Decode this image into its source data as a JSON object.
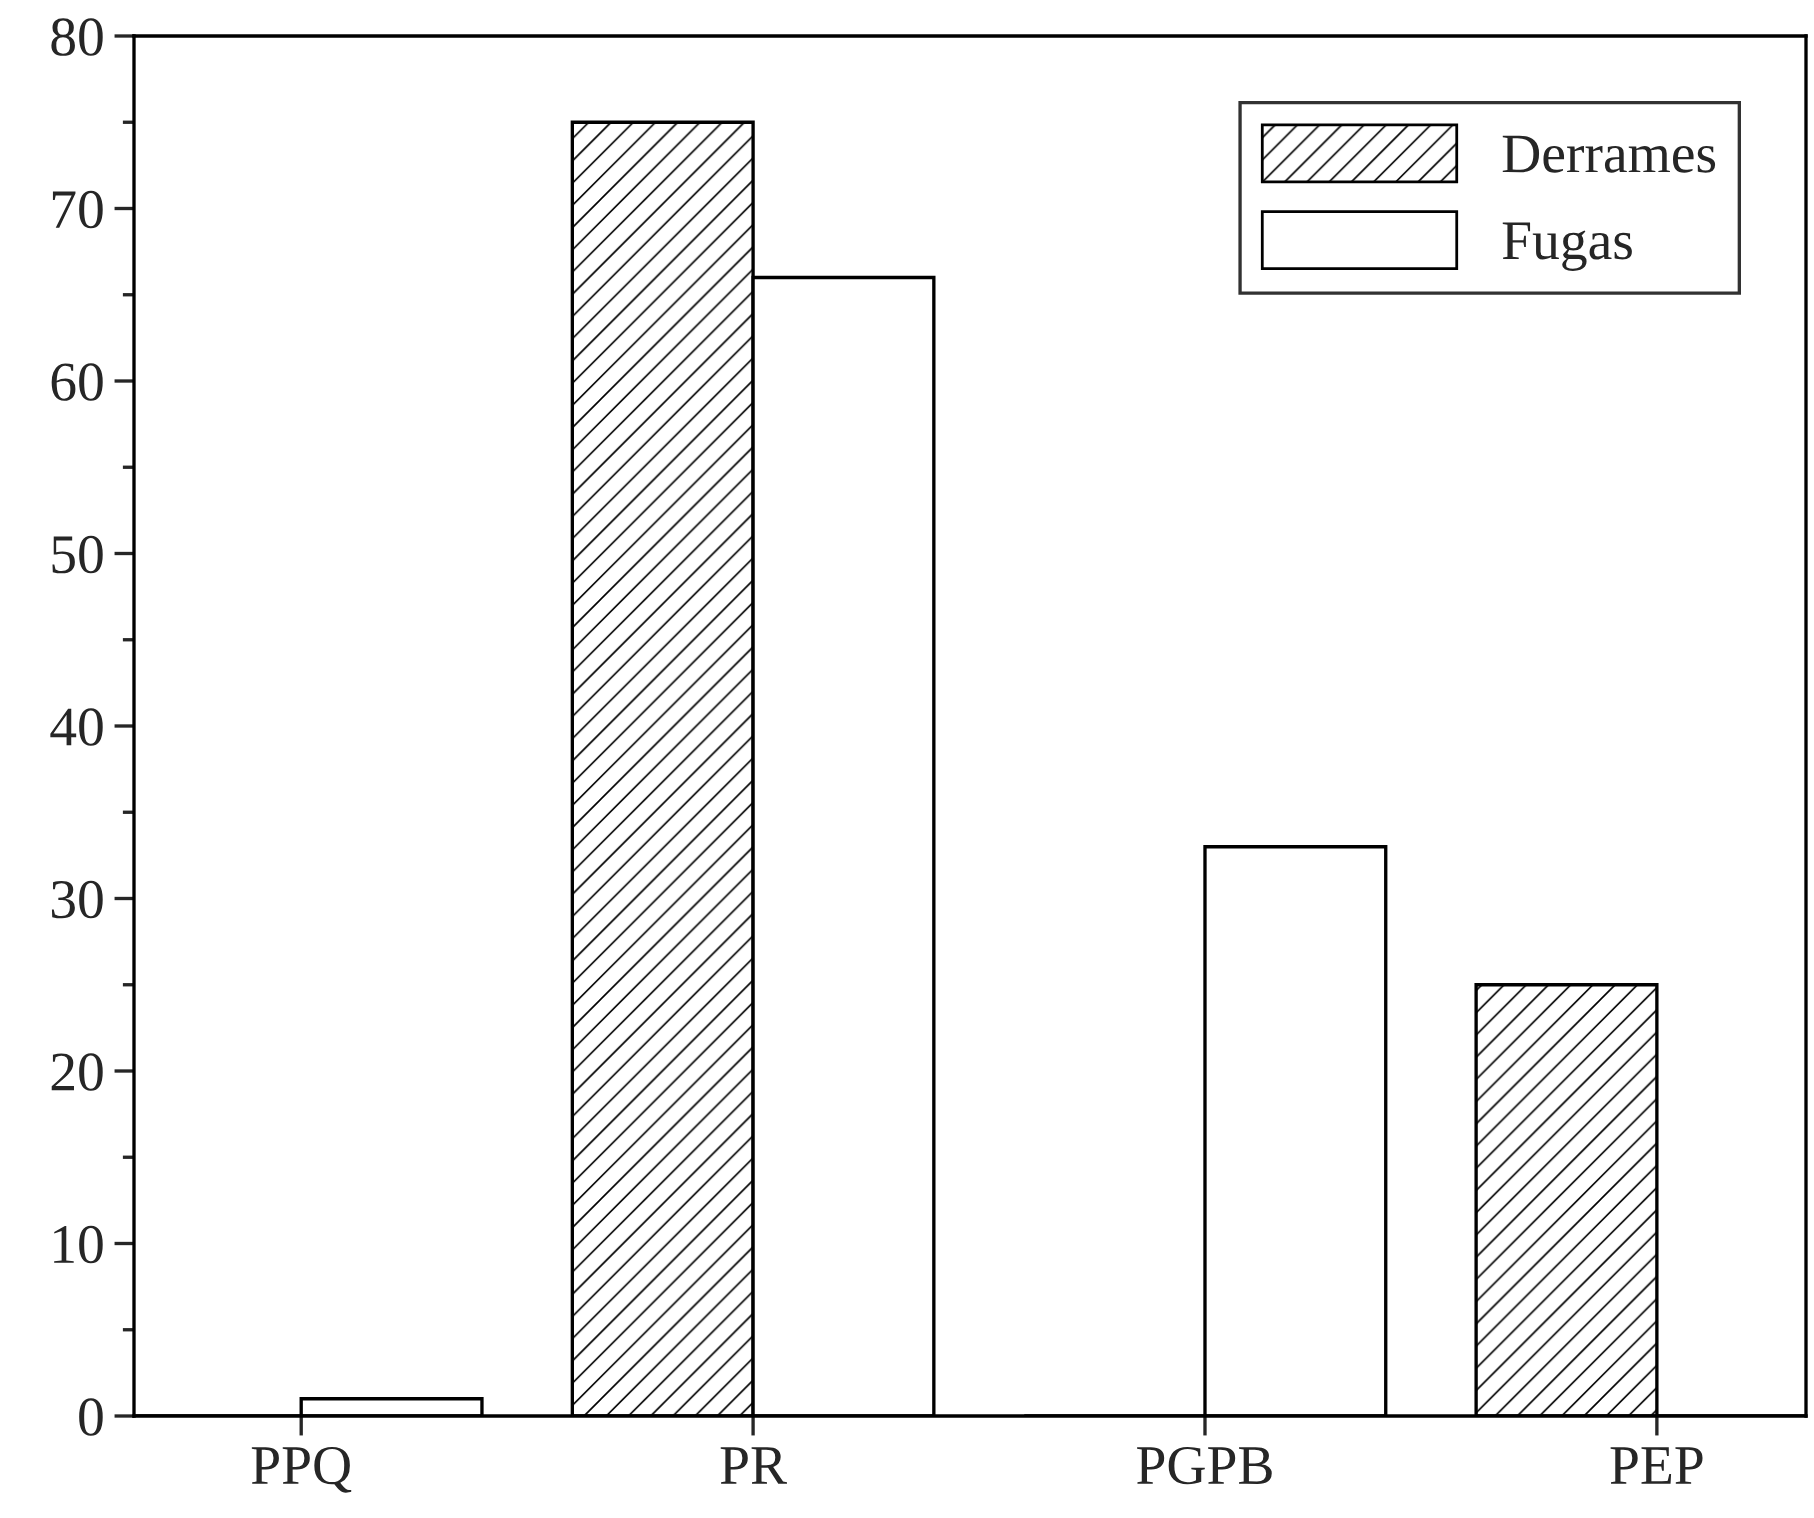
{
  "chart_data": {
    "type": "bar",
    "categories": [
      "PPQ",
      "PR",
      "PGPB",
      "PEP"
    ],
    "series": [
      {
        "name": "Derrames",
        "color": "#000000",
        "values": [
          0,
          75,
          0,
          25
        ]
      },
      {
        "name": "Fugas",
        "color": "#ffffff",
        "values": [
          1,
          66,
          33,
          0
        ]
      }
    ],
    "ylim": [
      0,
      80
    ],
    "yticks": [
      0,
      10,
      20,
      30,
      40,
      50,
      60,
      70,
      80
    ],
    "grid": false,
    "legend": "top right"
  }
}
